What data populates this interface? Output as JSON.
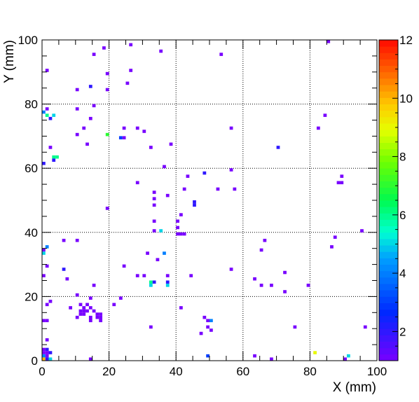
{
  "chart_data": {
    "type": "heatmap",
    "xlabel": "X (mm)",
    "ylabel": "Y (mm)",
    "xlim": [
      0,
      100
    ],
    "ylim": [
      0,
      100
    ],
    "grid": true,
    "x_ticks": [
      0,
      20,
      40,
      60,
      80,
      100
    ],
    "y_ticks": [
      0,
      20,
      40,
      60,
      80,
      100
    ],
    "x_tick_labels": [
      "0",
      "20",
      "40",
      "60",
      "80",
      "100"
    ],
    "y_tick_labels": [
      "0",
      "20",
      "40",
      "60",
      "80",
      "100"
    ],
    "colorbar": {
      "min": 1,
      "max": 12,
      "tick_values": [
        2,
        4,
        6,
        8,
        10,
        12
      ],
      "tick_labels": [
        "2",
        "4",
        "6",
        "8",
        "10",
        "12"
      ]
    },
    "bin_size": [
      1,
      1
    ],
    "cells": [
      [
        18,
        97,
        1
      ],
      [
        26,
        98,
        1
      ],
      [
        15,
        95,
        1
      ],
      [
        35,
        96,
        1
      ],
      [
        53,
        95,
        1
      ],
      [
        85,
        99,
        1
      ],
      [
        1,
        90,
        1
      ],
      [
        19,
        89,
        1
      ],
      [
        26,
        90,
        1
      ],
      [
        25,
        86,
        1
      ],
      [
        14,
        85,
        2
      ],
      [
        10,
        84,
        1
      ],
      [
        19,
        84,
        1
      ],
      [
        0,
        77,
        4
      ],
      [
        1,
        78,
        1
      ],
      [
        1,
        76,
        6
      ],
      [
        2,
        75,
        2
      ],
      [
        3,
        76,
        5
      ],
      [
        10,
        78,
        1
      ],
      [
        15,
        79,
        1
      ],
      [
        14,
        75,
        1
      ],
      [
        84,
        76,
        1
      ],
      [
        82,
        72,
        1
      ],
      [
        12,
        72,
        1
      ],
      [
        24,
        72,
        1
      ],
      [
        28,
        72,
        1
      ],
      [
        30,
        71,
        1
      ],
      [
        56,
        72,
        1
      ],
      [
        10,
        70,
        1
      ],
      [
        19,
        70,
        7
      ],
      [
        23,
        69,
        3
      ],
      [
        24,
        69,
        1
      ],
      [
        13,
        67,
        1
      ],
      [
        32,
        66,
        1
      ],
      [
        38,
        67,
        1
      ],
      [
        2,
        66,
        1
      ],
      [
        70,
        66,
        2
      ],
      [
        3,
        63,
        6
      ],
      [
        4,
        63,
        6
      ],
      [
        3,
        62,
        2
      ],
      [
        0,
        61,
        2
      ],
      [
        36,
        60,
        1
      ],
      [
        48,
        58,
        2
      ],
      [
        56,
        59,
        1
      ],
      [
        43,
        57,
        1
      ],
      [
        89,
        57,
        1
      ],
      [
        28,
        55,
        1
      ],
      [
        42,
        53,
        1
      ],
      [
        52,
        53,
        1
      ],
      [
        57,
        53,
        1
      ],
      [
        88,
        55,
        1
      ],
      [
        89,
        55,
        1
      ],
      [
        33,
        52,
        1
      ],
      [
        37,
        51,
        1
      ],
      [
        33,
        50,
        1
      ],
      [
        45,
        49,
        2
      ],
      [
        45,
        48,
        2
      ],
      [
        33,
        48,
        1
      ],
      [
        19,
        47,
        1
      ],
      [
        41,
        45,
        1
      ],
      [
        40,
        43,
        1
      ],
      [
        35,
        40,
        5
      ],
      [
        33,
        40,
        1
      ],
      [
        40,
        39,
        1
      ],
      [
        41,
        39,
        1
      ],
      [
        42,
        39,
        1
      ],
      [
        95,
        40,
        1
      ],
      [
        33,
        43,
        1
      ],
      [
        40,
        41,
        1
      ],
      [
        1,
        35,
        4
      ],
      [
        0,
        34,
        1
      ],
      [
        0,
        33,
        5
      ],
      [
        6,
        37,
        1
      ],
      [
        10,
        37,
        1
      ],
      [
        66,
        37,
        1
      ],
      [
        87,
        38,
        1
      ],
      [
        86,
        35,
        1
      ],
      [
        65,
        34,
        1
      ],
      [
        31,
        33,
        1
      ],
      [
        36,
        33,
        4
      ],
      [
        34,
        31,
        1
      ],
      [
        1,
        29,
        1
      ],
      [
        24,
        29,
        1
      ],
      [
        56,
        28,
        1
      ],
      [
        6,
        28,
        2
      ],
      [
        72,
        27,
        1
      ],
      [
        0,
        26,
        1
      ],
      [
        7,
        25,
        1
      ],
      [
        28,
        26,
        1
      ],
      [
        30,
        26,
        1
      ],
      [
        37,
        26,
        1
      ],
      [
        44,
        26,
        1
      ],
      [
        63,
        25,
        1
      ],
      [
        32,
        24,
        6
      ],
      [
        33,
        24,
        2
      ],
      [
        32,
        23,
        5
      ],
      [
        37,
        24,
        2
      ],
      [
        37,
        23,
        5
      ],
      [
        15,
        23,
        1
      ],
      [
        65,
        23,
        1
      ],
      [
        68,
        23,
        1
      ],
      [
        79,
        23,
        1
      ],
      [
        72,
        21,
        1
      ],
      [
        10,
        20,
        1
      ],
      [
        14,
        19,
        1
      ],
      [
        23,
        19,
        1
      ],
      [
        2,
        18,
        1
      ],
      [
        1,
        17,
        1
      ],
      [
        8,
        16,
        1
      ],
      [
        11,
        17,
        1
      ],
      [
        12,
        16,
        1
      ],
      [
        13,
        17,
        1
      ],
      [
        11,
        15,
        1
      ],
      [
        12,
        15,
        1
      ],
      [
        13,
        15,
        1
      ],
      [
        14,
        16,
        1
      ],
      [
        15,
        15,
        1
      ],
      [
        11,
        14,
        1
      ],
      [
        12,
        14,
        1
      ],
      [
        16,
        14,
        1
      ],
      [
        17,
        14,
        1
      ],
      [
        10,
        13,
        1
      ],
      [
        14,
        13,
        1
      ],
      [
        16,
        13,
        1
      ],
      [
        17,
        13,
        1
      ],
      [
        14,
        12,
        1
      ],
      [
        17,
        12,
        1
      ],
      [
        21,
        17,
        1
      ],
      [
        41,
        16,
        1
      ],
      [
        0,
        12,
        1
      ],
      [
        1,
        12,
        1
      ],
      [
        48,
        13,
        1
      ],
      [
        49,
        12,
        1
      ],
      [
        50,
        12,
        4
      ],
      [
        32,
        10,
        1
      ],
      [
        49,
        10,
        1
      ],
      [
        50,
        9,
        1
      ],
      [
        47,
        8,
        1
      ],
      [
        75,
        10,
        1
      ],
      [
        96,
        10,
        1
      ],
      [
        1,
        6,
        1
      ],
      [
        0,
        3,
        1
      ],
      [
        1,
        3,
        2
      ],
      [
        0,
        2,
        1
      ],
      [
        1,
        2,
        1
      ],
      [
        2,
        2,
        2
      ],
      [
        0,
        1,
        4
      ],
      [
        1,
        1,
        1
      ],
      [
        0,
        0,
        10
      ],
      [
        1,
        0,
        2
      ],
      [
        2,
        0,
        5
      ],
      [
        14,
        0,
        1
      ],
      [
        49,
        1,
        3
      ],
      [
        63,
        1,
        1
      ],
      [
        68,
        0,
        1
      ],
      [
        81,
        2,
        9
      ],
      [
        91,
        1,
        5
      ],
      [
        90,
        0,
        1
      ]
    ]
  }
}
